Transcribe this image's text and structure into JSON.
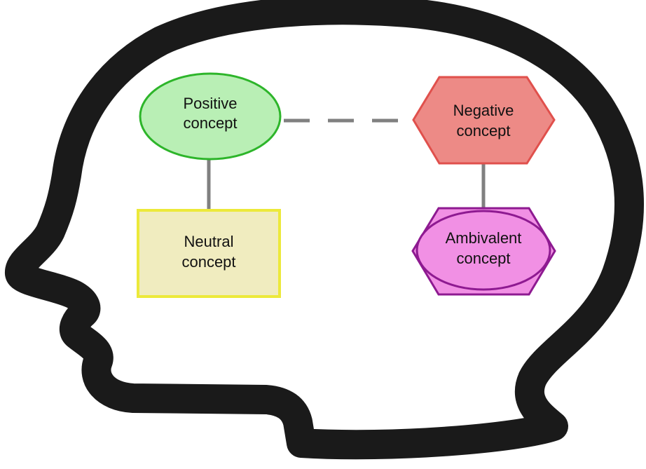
{
  "diagram": {
    "colors": {
      "head_outline": "#1a1a1a",
      "connector": "#808080",
      "positive_fill": "#b9efb5",
      "positive_stroke": "#2db52a",
      "neutral_fill": "#f0ecbf",
      "neutral_stroke": "#ece93a",
      "negative_fill": "#ed8a86",
      "negative_stroke": "#e0504c",
      "ambivalent_fill": "#f190e4",
      "ambivalent_stroke": "#8e1a91"
    },
    "nodes": {
      "positive": {
        "shape": "ellipse",
        "line1": "Positive",
        "line2": "concept"
      },
      "neutral": {
        "shape": "rectangle",
        "line1": "Neutral",
        "line2": "concept"
      },
      "negative": {
        "shape": "hexagon",
        "line1": "Negative",
        "line2": "concept"
      },
      "ambivalent": {
        "shape": "hexagon-with-ellipse",
        "line1": "Ambivalent",
        "line2": "concept"
      }
    },
    "edges": [
      {
        "from": "positive",
        "to": "neutral",
        "style": "solid"
      },
      {
        "from": "positive",
        "to": "negative",
        "style": "dashed"
      },
      {
        "from": "negative",
        "to": "ambivalent",
        "style": "solid"
      }
    ]
  }
}
